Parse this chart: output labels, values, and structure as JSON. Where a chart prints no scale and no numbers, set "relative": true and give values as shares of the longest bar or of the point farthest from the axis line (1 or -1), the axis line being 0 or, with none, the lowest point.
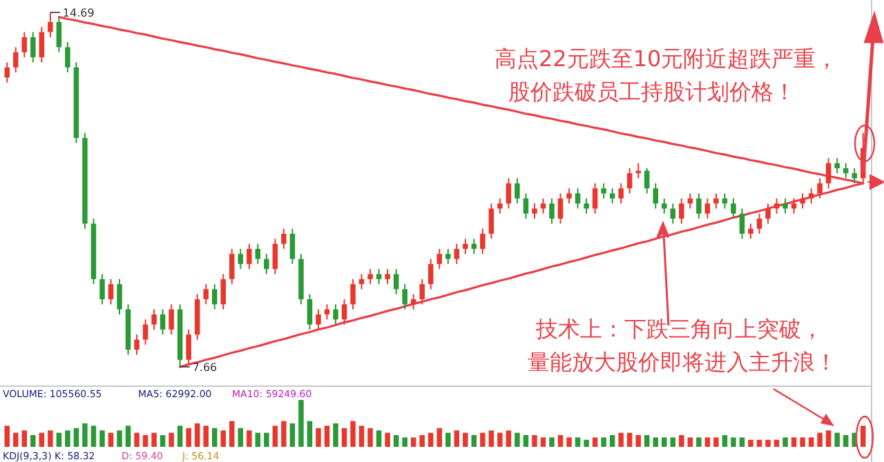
{
  "chart_data": [
    {
      "type": "candlestick",
      "categories": [
        null,
        null,
        null,
        null,
        null,
        null,
        null,
        null,
        null,
        null,
        null,
        null,
        null,
        null,
        null,
        null,
        null,
        null,
        null,
        null,
        null,
        null,
        null,
        null,
        null,
        null,
        null,
        null,
        null,
        null,
        null,
        null,
        null,
        null,
        null,
        null,
        null,
        null,
        null,
        null,
        null,
        null,
        null,
        null,
        null,
        null,
        null,
        null,
        null,
        null,
        null,
        null,
        null,
        null,
        null,
        null,
        null,
        null,
        null,
        null,
        null,
        null,
        null,
        null,
        null,
        null,
        null,
        null,
        null,
        null,
        null,
        null,
        null,
        null,
        null,
        null,
        null,
        null,
        null,
        null,
        null,
        null,
        null,
        null,
        null,
        null,
        null,
        null,
        null,
        null,
        null,
        null,
        null,
        null,
        null,
        null,
        null,
        null,
        null,
        null
      ],
      "ohlc": [
        [
          13.4,
          13.7,
          13.3,
          13.6
        ],
        [
          13.6,
          14.0,
          13.5,
          13.9
        ],
        [
          13.9,
          14.3,
          13.8,
          14.2
        ],
        [
          14.2,
          14.3,
          13.7,
          13.8
        ],
        [
          13.8,
          14.4,
          13.7,
          14.3
        ],
        [
          14.3,
          14.69,
          14.2,
          14.5
        ],
        [
          14.5,
          14.6,
          13.9,
          14.0
        ],
        [
          14.0,
          14.1,
          13.5,
          13.6
        ],
        [
          13.6,
          13.7,
          12.1,
          12.2
        ],
        [
          12.2,
          12.3,
          10.4,
          10.5
        ],
        [
          10.5,
          10.6,
          9.3,
          9.4
        ],
        [
          9.4,
          9.5,
          8.9,
          9.0
        ],
        [
          9.0,
          9.4,
          8.9,
          9.3
        ],
        [
          9.3,
          9.4,
          8.7,
          8.8
        ],
        [
          8.8,
          8.9,
          7.9,
          8.0
        ],
        [
          8.0,
          8.3,
          7.9,
          8.2
        ],
        [
          8.2,
          8.6,
          8.1,
          8.5
        ],
        [
          8.5,
          8.8,
          8.4,
          8.7
        ],
        [
          8.7,
          8.8,
          8.3,
          8.4
        ],
        [
          8.4,
          8.9,
          8.3,
          8.8
        ],
        [
          8.8,
          8.9,
          7.66,
          7.8
        ],
        [
          7.8,
          8.4,
          7.7,
          8.3
        ],
        [
          8.3,
          9.1,
          8.2,
          9.0
        ],
        [
          9.0,
          9.3,
          8.9,
          9.2
        ],
        [
          9.2,
          9.3,
          8.8,
          8.9
        ],
        [
          8.9,
          9.5,
          8.8,
          9.4
        ],
        [
          9.4,
          10.0,
          9.3,
          9.9
        ],
        [
          9.9,
          10.0,
          9.6,
          9.7
        ],
        [
          9.7,
          10.1,
          9.6,
          10.0
        ],
        [
          10.0,
          10.1,
          9.7,
          9.8
        ],
        [
          9.8,
          9.9,
          9.5,
          9.6
        ],
        [
          9.6,
          10.2,
          9.5,
          10.1
        ],
        [
          10.1,
          10.4,
          10.0,
          10.3
        ],
        [
          10.3,
          10.4,
          9.7,
          9.8
        ],
        [
          9.8,
          9.9,
          8.9,
          9.0
        ],
        [
          9.0,
          9.1,
          8.4,
          8.5
        ],
        [
          8.5,
          8.8,
          8.4,
          8.7
        ],
        [
          8.7,
          8.9,
          8.6,
          8.8
        ],
        [
          8.8,
          8.9,
          8.5,
          8.6
        ],
        [
          8.6,
          9.0,
          8.5,
          8.9
        ],
        [
          8.9,
          9.4,
          8.8,
          9.3
        ],
        [
          9.3,
          9.5,
          9.2,
          9.4
        ],
        [
          9.4,
          9.6,
          9.3,
          9.5
        ],
        [
          9.5,
          9.6,
          9.3,
          9.4
        ],
        [
          9.4,
          9.6,
          9.3,
          9.5
        ],
        [
          9.5,
          9.6,
          9.1,
          9.2
        ],
        [
          9.2,
          9.3,
          8.8,
          8.9
        ],
        [
          8.9,
          9.1,
          8.8,
          9.0
        ],
        [
          9.0,
          9.4,
          8.9,
          9.3
        ],
        [
          9.3,
          9.8,
          9.2,
          9.7
        ],
        [
          9.7,
          10.0,
          9.6,
          9.9
        ],
        [
          9.9,
          10.0,
          9.7,
          9.8
        ],
        [
          9.8,
          10.1,
          9.7,
          10.0
        ],
        [
          10.0,
          10.2,
          9.9,
          10.1
        ],
        [
          10.1,
          10.2,
          9.9,
          10.0
        ],
        [
          10.0,
          10.4,
          9.9,
          10.3
        ],
        [
          10.3,
          10.9,
          10.2,
          10.8
        ],
        [
          10.8,
          11.0,
          10.7,
          10.9
        ],
        [
          10.9,
          11.4,
          10.8,
          11.3
        ],
        [
          11.3,
          11.4,
          10.9,
          11.0
        ],
        [
          11.0,
          11.1,
          10.6,
          10.7
        ],
        [
          10.7,
          10.9,
          10.6,
          10.8
        ],
        [
          10.8,
          11.0,
          10.7,
          10.9
        ],
        [
          10.9,
          11.0,
          10.5,
          10.6
        ],
        [
          10.6,
          11.1,
          10.5,
          11.0
        ],
        [
          11.0,
          11.2,
          10.9,
          11.1
        ],
        [
          11.1,
          11.2,
          10.8,
          10.9
        ],
        [
          10.9,
          11.0,
          10.7,
          10.8
        ],
        [
          10.8,
          11.3,
          10.7,
          11.2
        ],
        [
          11.2,
          11.3,
          11.0,
          11.1
        ],
        [
          11.1,
          11.2,
          10.9,
          11.0
        ],
        [
          11.0,
          11.3,
          10.9,
          11.2
        ],
        [
          11.2,
          11.6,
          11.1,
          11.5
        ],
        [
          11.5,
          11.7,
          11.4,
          11.55
        ],
        [
          11.55,
          11.6,
          11.1,
          11.2
        ],
        [
          11.2,
          11.3,
          10.8,
          10.9
        ],
        [
          10.9,
          11.0,
          10.7,
          10.8
        ],
        [
          10.8,
          10.9,
          10.5,
          10.6
        ],
        [
          10.6,
          11.0,
          10.5,
          10.9
        ],
        [
          10.9,
          11.1,
          10.8,
          11.0
        ],
        [
          11.0,
          11.1,
          10.6,
          10.7
        ],
        [
          10.7,
          11.0,
          10.6,
          10.9
        ],
        [
          10.9,
          11.1,
          10.8,
          11.0
        ],
        [
          11.0,
          11.1,
          10.8,
          10.9
        ],
        [
          10.9,
          11.0,
          10.6,
          10.7
        ],
        [
          10.7,
          10.8,
          10.2,
          10.3
        ],
        [
          10.3,
          10.5,
          10.2,
          10.4
        ],
        [
          10.4,
          10.7,
          10.3,
          10.6
        ],
        [
          10.6,
          10.9,
          10.5,
          10.8
        ],
        [
          10.8,
          11.0,
          10.7,
          10.9
        ],
        [
          10.9,
          11.0,
          10.7,
          10.8
        ],
        [
          10.8,
          11.0,
          10.7,
          10.9
        ],
        [
          10.9,
          11.1,
          10.8,
          11.0
        ],
        [
          11.0,
          11.2,
          10.9,
          11.1
        ],
        [
          11.1,
          11.4,
          11.0,
          11.3
        ],
        [
          11.3,
          11.8,
          11.2,
          11.7
        ],
        [
          11.7,
          11.8,
          11.5,
          11.6
        ],
        [
          11.6,
          11.7,
          11.4,
          11.5
        ],
        [
          11.5,
          11.6,
          11.3,
          11.4
        ],
        [
          11.4,
          12.3,
          11.3,
          12.0
        ]
      ],
      "colors": [
        "#e8382e",
        "#e8382e",
        "#e8382e",
        "#2b9a36",
        "#e8382e",
        "#e8382e",
        "#2b9a36",
        "#2b9a36",
        "#2b9a36",
        "#2b9a36",
        "#2b9a36",
        "#2b9a36",
        "#e8382e",
        "#2b9a36",
        "#2b9a36",
        "#e8382e",
        "#e8382e",
        "#e8382e",
        "#2b9a36",
        "#e8382e",
        "#2b9a36",
        "#e8382e",
        "#e8382e",
        "#e8382e",
        "#2b9a36",
        "#e8382e",
        "#e8382e",
        "#2b9a36",
        "#e8382e",
        "#2b9a36",
        "#2b9a36",
        "#e8382e",
        "#e8382e",
        "#2b9a36",
        "#2b9a36",
        "#2b9a36",
        "#e8382e",
        "#e8382e",
        "#2b9a36",
        "#e8382e",
        "#e8382e",
        "#e8382e",
        "#e8382e",
        "#2b9a36",
        "#e8382e",
        "#2b9a36",
        "#2b9a36",
        "#e8382e",
        "#e8382e",
        "#e8382e",
        "#e8382e",
        "#2b9a36",
        "#e8382e",
        "#e8382e",
        "#2b9a36",
        "#e8382e",
        "#e8382e",
        "#e8382e",
        "#e8382e",
        "#2b9a36",
        "#2b9a36",
        "#e8382e",
        "#e8382e",
        "#2b9a36",
        "#e8382e",
        "#e8382e",
        "#2b9a36",
        "#2b9a36",
        "#e8382e",
        "#2b9a36",
        "#2b9a36",
        "#e8382e",
        "#e8382e",
        "#e8382e",
        "#2b9a36",
        "#2b9a36",
        "#2b9a36",
        "#2b9a36",
        "#e8382e",
        "#e8382e",
        "#2b9a36",
        "#e8382e",
        "#e8382e",
        "#2b9a36",
        "#2b9a36",
        "#2b9a36",
        "#e8382e",
        "#e8382e",
        "#e8382e",
        "#e8382e",
        "#2b9a36",
        "#e8382e",
        "#e8382e",
        "#e8382e",
        "#e8382e",
        "#e8382e",
        "#2b9a36",
        "#2b9a36",
        "#2b9a36",
        "#e8382e"
      ],
      "series": [
        {
          "type": "line",
          "color": "#e8404a",
          "values": [
            null,
            null,
            null,
            null,
            null,
            null,
            14.6,
            14.56,
            14.53,
            14.49,
            14.46,
            14.42,
            14.39,
            14.35,
            14.32,
            14.28,
            14.25,
            14.21,
            14.17,
            14.14,
            14.1,
            14.07,
            14.03,
            14.0,
            13.96,
            13.93,
            13.89,
            13.86,
            13.82,
            13.78,
            13.75,
            13.71,
            13.68,
            13.64,
            13.61,
            13.57,
            13.54,
            13.5,
            13.47,
            13.43,
            13.39,
            13.36,
            13.32,
            13.29,
            13.25,
            13.22,
            13.18,
            13.15,
            13.11,
            13.07,
            13.04,
            13.0,
            12.97,
            12.93,
            12.9,
            12.86,
            12.83,
            12.79,
            12.76,
            12.72,
            12.68,
            12.65,
            12.61,
            12.58,
            12.54,
            12.51,
            12.47,
            12.44,
            12.4,
            12.37,
            12.33,
            12.29,
            12.26,
            12.22,
            12.19,
            12.15,
            12.12,
            12.08,
            12.05,
            12.01,
            11.98,
            11.94,
            11.9,
            11.87,
            11.83,
            11.8,
            11.76,
            11.73,
            11.69,
            11.66,
            11.62,
            11.59,
            11.55,
            11.51,
            11.48,
            11.44,
            11.41,
            11.37,
            11.34,
            11.3
          ]
        },
        {
          "type": "line",
          "color": "#e8404a",
          "values": [
            null,
            null,
            null,
            null,
            null,
            null,
            null,
            null,
            null,
            null,
            null,
            null,
            null,
            null,
            null,
            null,
            null,
            null,
            null,
            null,
            7.66,
            7.71,
            7.75,
            7.8,
            7.84,
            7.89,
            7.94,
            7.98,
            8.03,
            8.07,
            8.12,
            8.17,
            8.21,
            8.26,
            8.31,
            8.35,
            8.4,
            8.44,
            8.49,
            8.54,
            8.58,
            8.63,
            8.67,
            8.72,
            8.77,
            8.81,
            8.86,
            8.91,
            8.95,
            9.0,
            9.04,
            9.09,
            9.14,
            9.18,
            9.23,
            9.28,
            9.32,
            9.37,
            9.41,
            9.46,
            9.51,
            9.55,
            9.6,
            9.65,
            9.69,
            9.74,
            9.78,
            9.83,
            9.88,
            9.92,
            9.97,
            10.01,
            10.06,
            10.11,
            10.15,
            10.2,
            10.25,
            10.29,
            10.34,
            10.38,
            10.43,
            10.48,
            10.52,
            10.57,
            10.62,
            10.66,
            10.71,
            10.75,
            10.8,
            10.85,
            10.89,
            10.94,
            10.98,
            11.03,
            11.08,
            11.12,
            11.17,
            11.21,
            11.26,
            11.3
          ]
        }
      ],
      "annotations": [
        "14.69",
        "7.66",
        "高点22元跌至10元附近超跌严重，",
        "股价跌破员工持股计划价格！",
        "技术上：下跌三角向上突破，",
        "量能放大股价即将进入主升浪！"
      ]
    },
    {
      "type": "bar",
      "relative": true,
      "categories": [
        null,
        null,
        null,
        null,
        null,
        null,
        null,
        null,
        null,
        null,
        null,
        null,
        null,
        null,
        null,
        null,
        null,
        null,
        null,
        null,
        null,
        null,
        null,
        null,
        null,
        null,
        null,
        null,
        null,
        null,
        null,
        null,
        null,
        null,
        null,
        null,
        null,
        null,
        null,
        null,
        null,
        null,
        null,
        null,
        null,
        null,
        null,
        null,
        null,
        null,
        null,
        null,
        null,
        null,
        null,
        null,
        null,
        null,
        null,
        null,
        null,
        null,
        null,
        null,
        null,
        null,
        null,
        null,
        null,
        null,
        null,
        null,
        null,
        null,
        null,
        null,
        null,
        null,
        null,
        null,
        null,
        null,
        null,
        null,
        null,
        null,
        null,
        null,
        null,
        null,
        null,
        null,
        null,
        null,
        null,
        null,
        null,
        null,
        null,
        null
      ],
      "values": [
        0.45,
        0.3,
        0.35,
        0.25,
        0.3,
        0.35,
        0.3,
        0.35,
        0.4,
        0.5,
        0.45,
        0.35,
        0.3,
        0.35,
        0.45,
        0.3,
        0.25,
        0.3,
        0.25,
        0.3,
        0.45,
        0.4,
        0.5,
        0.45,
        0.4,
        0.35,
        0.55,
        0.4,
        0.35,
        0.3,
        0.3,
        0.45,
        0.55,
        0.5,
        1.0,
        0.55,
        0.4,
        0.45,
        0.5,
        0.4,
        0.55,
        0.45,
        0.4,
        0.35,
        0.3,
        0.25,
        0.2,
        0.2,
        0.25,
        0.3,
        0.4,
        0.3,
        0.35,
        0.3,
        0.25,
        0.3,
        0.35,
        0.3,
        0.35,
        0.3,
        0.25,
        0.25,
        0.2,
        0.2,
        0.25,
        0.2,
        0.2,
        0.15,
        0.2,
        0.2,
        0.25,
        0.3,
        0.3,
        0.25,
        0.25,
        0.2,
        0.2,
        0.2,
        0.25,
        0.2,
        0.2,
        0.2,
        0.2,
        0.25,
        0.2,
        0.2,
        0.15,
        0.15,
        0.15,
        0.15,
        0.2,
        0.2,
        0.2,
        0.2,
        0.3,
        0.35,
        0.3,
        0.25,
        0.3,
        0.45
      ],
      "colors": [
        "#e8382e",
        "#e8382e",
        "#e8382e",
        "#2b9a36",
        "#e8382e",
        "#e8382e",
        "#2b9a36",
        "#2b9a36",
        "#2b9a36",
        "#2b9a36",
        "#2b9a36",
        "#2b9a36",
        "#e8382e",
        "#2b9a36",
        "#2b9a36",
        "#e8382e",
        "#e8382e",
        "#e8382e",
        "#2b9a36",
        "#e8382e",
        "#2b9a36",
        "#e8382e",
        "#e8382e",
        "#e8382e",
        "#2b9a36",
        "#e8382e",
        "#e8382e",
        "#2b9a36",
        "#e8382e",
        "#2b9a36",
        "#2b9a36",
        "#e8382e",
        "#e8382e",
        "#2b9a36",
        "#2b9a36",
        "#2b9a36",
        "#e8382e",
        "#e8382e",
        "#2b9a36",
        "#e8382e",
        "#e8382e",
        "#e8382e",
        "#e8382e",
        "#2b9a36",
        "#e8382e",
        "#2b9a36",
        "#2b9a36",
        "#e8382e",
        "#e8382e",
        "#e8382e",
        "#e8382e",
        "#2b9a36",
        "#e8382e",
        "#e8382e",
        "#2b9a36",
        "#e8382e",
        "#e8382e",
        "#e8382e",
        "#e8382e",
        "#2b9a36",
        "#2b9a36",
        "#e8382e",
        "#e8382e",
        "#2b9a36",
        "#e8382e",
        "#e8382e",
        "#2b9a36",
        "#2b9a36",
        "#e8382e",
        "#2b9a36",
        "#2b9a36",
        "#e8382e",
        "#e8382e",
        "#e8382e",
        "#2b9a36",
        "#2b9a36",
        "#2b9a36",
        "#2b9a36",
        "#e8382e",
        "#e8382e",
        "#2b9a36",
        "#e8382e",
        "#e8382e",
        "#2b9a36",
        "#2b9a36",
        "#2b9a36",
        "#e8382e",
        "#e8382e",
        "#e8382e",
        "#e8382e",
        "#2b9a36",
        "#e8382e",
        "#e8382e",
        "#e8382e",
        "#e8382e",
        "#e8382e",
        "#2b9a36",
        "#2b9a36",
        "#2b9a36",
        "#e8382e"
      ],
      "annotations": [
        "VOLUME: 105560.55",
        "MA5: 62992.00",
        "MA10: 59249.60",
        "KDJ(9,3,3)  K: 58.32",
        "D: 59.40",
        "J: 56.14"
      ]
    }
  ]
}
